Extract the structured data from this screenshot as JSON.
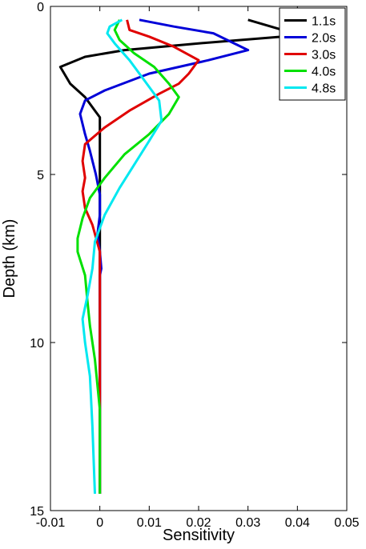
{
  "chart_data": {
    "type": "line",
    "xlabel": "Sensitivity",
    "ylabel": "Depth (km)",
    "xlim": [
      -0.01,
      0.05
    ],
    "ylim": [
      0,
      15
    ],
    "y_reversed": true,
    "grid": false,
    "legend_position": "top-right",
    "x_ticks": [
      -0.01,
      0,
      0.01,
      0.02,
      0.03,
      0.04,
      0.05
    ],
    "x_tick_labels": [
      "-0.01",
      "0",
      "0.01",
      "0.02",
      "0.03",
      "0.04",
      "0.05"
    ],
    "y_ticks": [
      0,
      5,
      10,
      15
    ],
    "y_tick_labels": [
      "0",
      "5",
      "10",
      "15"
    ],
    "series": [
      {
        "name": "1.1s",
        "color": "#000000",
        "points": [
          [
            0.03,
            0.4
          ],
          [
            0.037,
            0.7
          ],
          [
            0.04,
            0.8
          ],
          [
            0.037,
            0.9
          ],
          [
            0.02,
            1.1
          ],
          [
            0.005,
            1.3
          ],
          [
            -0.003,
            1.5
          ],
          [
            -0.008,
            1.8
          ],
          [
            -0.006,
            2.3
          ],
          [
            -0.003,
            2.7
          ],
          [
            -0.001,
            3.1
          ],
          [
            0.0,
            3.3
          ],
          [
            0.0,
            4.0
          ],
          [
            0.0,
            5.0
          ],
          [
            0.0,
            6.0
          ],
          [
            0.0,
            7.0
          ],
          [
            0.0,
            8.0
          ],
          [
            0.0,
            10.0
          ],
          [
            0.0,
            12.0
          ],
          [
            0.0,
            14.5
          ]
        ]
      },
      {
        "name": "2.0s",
        "color": "#0000d8",
        "points": [
          [
            0.008,
            0.4
          ],
          [
            0.015,
            0.6
          ],
          [
            0.023,
            0.8
          ],
          [
            0.03,
            1.3
          ],
          [
            0.022,
            1.6
          ],
          [
            0.01,
            2.0
          ],
          [
            0.001,
            2.5
          ],
          [
            -0.003,
            2.8
          ],
          [
            -0.004,
            3.2
          ],
          [
            -0.003,
            3.8
          ],
          [
            -0.002,
            4.3
          ],
          [
            -0.0008,
            5.0
          ],
          [
            0.0,
            5.6
          ],
          [
            0.0,
            6.2
          ],
          [
            -0.0005,
            6.8
          ],
          [
            0.0,
            7.3
          ],
          [
            0.0003,
            7.8
          ],
          [
            0.0,
            8.0
          ],
          [
            0.0,
            10.0
          ],
          [
            0.0,
            12.0
          ],
          [
            0.0,
            14.5
          ]
        ]
      },
      {
        "name": "3.0s",
        "color": "#e00000",
        "points": [
          [
            0.0055,
            0.4
          ],
          [
            0.006,
            0.7
          ],
          [
            0.01,
            0.9
          ],
          [
            0.015,
            1.2
          ],
          [
            0.02,
            1.6
          ],
          [
            0.018,
            2.0
          ],
          [
            0.016,
            2.3
          ],
          [
            0.012,
            2.6
          ],
          [
            0.006,
            3.1
          ],
          [
            0.001,
            3.6
          ],
          [
            -0.003,
            4.1
          ],
          [
            -0.0035,
            4.6
          ],
          [
            -0.003,
            5.1
          ],
          [
            -0.0035,
            5.5
          ],
          [
            -0.003,
            6.0
          ],
          [
            -0.0015,
            6.5
          ],
          [
            0.0,
            7.3
          ],
          [
            0.0,
            8.3
          ],
          [
            0.0,
            10.0
          ],
          [
            0.0,
            12.0
          ],
          [
            0.0,
            14.5
          ]
        ]
      },
      {
        "name": "4.0s",
        "color": "#00e000",
        "points": [
          [
            0.004,
            0.4
          ],
          [
            0.003,
            0.7
          ],
          [
            0.004,
            1.0
          ],
          [
            0.007,
            1.4
          ],
          [
            0.011,
            1.8
          ],
          [
            0.014,
            2.3
          ],
          [
            0.016,
            2.7
          ],
          [
            0.014,
            3.2
          ],
          [
            0.01,
            3.8
          ],
          [
            0.005,
            4.4
          ],
          [
            0.001,
            5.1
          ],
          [
            -0.002,
            5.7
          ],
          [
            -0.0035,
            6.3
          ],
          [
            -0.0045,
            6.9
          ],
          [
            -0.0045,
            7.3
          ],
          [
            -0.003,
            8.0
          ],
          [
            -0.0025,
            8.8
          ],
          [
            -0.002,
            9.5
          ],
          [
            -0.001,
            10.5
          ],
          [
            0.0,
            12.0
          ],
          [
            0.0,
            14.5
          ]
        ]
      },
      {
        "name": "4.8s",
        "color": "#00e8f0",
        "points": [
          [
            0.0045,
            0.4
          ],
          [
            0.002,
            0.6
          ],
          [
            0.0015,
            0.8
          ],
          [
            0.003,
            1.1
          ],
          [
            0.006,
            1.6
          ],
          [
            0.009,
            2.2
          ],
          [
            0.012,
            2.8
          ],
          [
            0.0125,
            3.4
          ],
          [
            0.01,
            4.0
          ],
          [
            0.007,
            4.7
          ],
          [
            0.004,
            5.4
          ],
          [
            0.001,
            6.2
          ],
          [
            -0.001,
            7.0
          ],
          [
            -0.0015,
            7.8
          ],
          [
            -0.0025,
            8.6
          ],
          [
            -0.0035,
            9.3
          ],
          [
            -0.003,
            10.0
          ],
          [
            -0.002,
            11.0
          ],
          [
            -0.0015,
            12.5
          ],
          [
            -0.001,
            14.5
          ]
        ]
      }
    ]
  }
}
